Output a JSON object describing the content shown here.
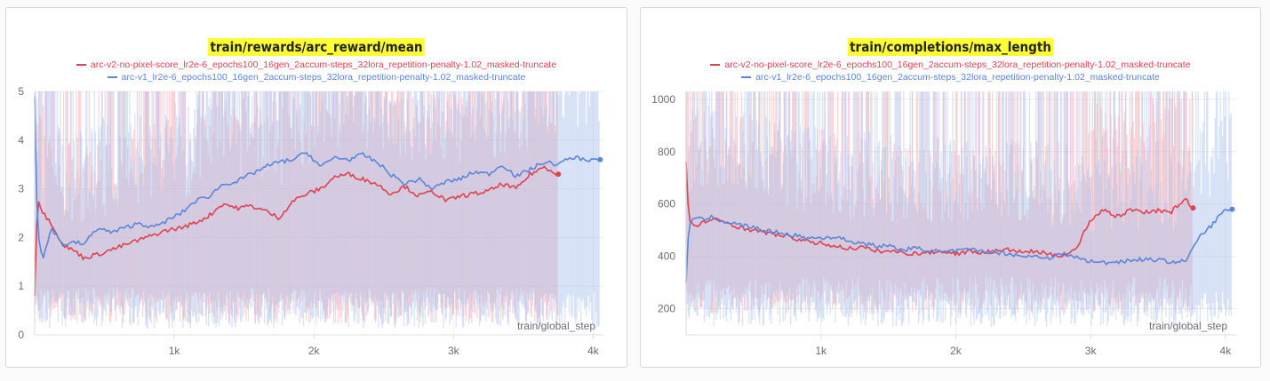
{
  "colors": {
    "series_red": "#e0414f",
    "series_blue": "#5b85d9",
    "band_red": "#f7a1a8",
    "band_blue": "#a9c2ee",
    "title_highlight": "#ffff33"
  },
  "chart_data": [
    {
      "type": "line",
      "title": "train/rewards/arc_reward/mean",
      "xlabel": "train/global_step",
      "ylabel": "",
      "xlim": [
        0,
        4080
      ],
      "ylim": [
        0,
        5
      ],
      "x_ticks": [
        {
          "value": 1000,
          "label": "1k"
        },
        {
          "value": 2000,
          "label": "2k"
        },
        {
          "value": 3000,
          "label": "3k"
        },
        {
          "value": 4000,
          "label": "4k"
        }
      ],
      "y_ticks": [
        {
          "value": 0,
          "label": "0"
        },
        {
          "value": 1,
          "label": "1"
        },
        {
          "value": 2,
          "label": "2"
        },
        {
          "value": 3,
          "label": "3"
        },
        {
          "value": 4,
          "label": "4"
        },
        {
          "value": 5,
          "label": "5"
        }
      ],
      "grid": true,
      "legend_position": "top-center",
      "series": [
        {
          "name": "arc-v2-no-pixel-score_lr2e-6_epochs100_16gen_2accum-steps_32lora_repetition-penalty-1.02_masked-truncate",
          "color": "red",
          "x": [
            0,
            20,
            60,
            120,
            200,
            300,
            350,
            450,
            550,
            650,
            750,
            850,
            950,
            1050,
            1150,
            1250,
            1350,
            1450,
            1550,
            1650,
            1750,
            1850,
            1950,
            2050,
            2150,
            2250,
            2350,
            2450,
            2550,
            2650,
            2750,
            2850,
            2950,
            3050,
            3150,
            3250,
            3350,
            3450,
            3550,
            3650,
            3750
          ],
          "y": [
            0.8,
            2.8,
            2.5,
            2.3,
            1.85,
            1.7,
            1.58,
            1.65,
            1.75,
            1.85,
            1.95,
            2.05,
            2.15,
            2.2,
            2.3,
            2.45,
            2.7,
            2.6,
            2.65,
            2.55,
            2.4,
            2.75,
            2.9,
            3.0,
            3.25,
            3.3,
            3.2,
            3.1,
            2.9,
            3.05,
            2.85,
            2.95,
            2.75,
            2.85,
            2.9,
            2.95,
            3.1,
            3.0,
            3.3,
            3.45,
            3.3
          ],
          "band_low": 0.6,
          "band_high": 5.0
        },
        {
          "name": "arc-v1_lr2e-6_epochs100_16gen_2accum-steps_32lora_repetition-penalty-1.02_masked-truncate",
          "color": "blue",
          "x": [
            0,
            20,
            60,
            120,
            200,
            300,
            350,
            450,
            550,
            650,
            750,
            850,
            950,
            1050,
            1150,
            1250,
            1350,
            1450,
            1550,
            1650,
            1750,
            1850,
            1950,
            2050,
            2150,
            2250,
            2350,
            2450,
            2550,
            2650,
            2750,
            2850,
            2950,
            3050,
            3150,
            3250,
            3350,
            3450,
            3550,
            3650,
            3750,
            3850,
            3950,
            4050
          ],
          "y": [
            4.9,
            2.1,
            1.55,
            2.2,
            1.85,
            1.9,
            1.85,
            2.2,
            2.1,
            2.2,
            2.3,
            2.2,
            2.35,
            2.5,
            2.75,
            2.85,
            3.1,
            3.15,
            3.3,
            3.45,
            3.55,
            3.6,
            3.75,
            3.45,
            3.65,
            3.6,
            3.7,
            3.55,
            3.3,
            3.1,
            3.2,
            3.0,
            3.15,
            3.2,
            3.35,
            3.3,
            3.5,
            3.25,
            3.4,
            3.55,
            3.5,
            3.65,
            3.6,
            3.6
          ],
          "band_low": 0.5,
          "band_high": 5.0
        }
      ]
    },
    {
      "type": "line",
      "title": "train/completions/max_length",
      "xlabel": "train/global_step",
      "ylabel": "",
      "xlim": [
        0,
        4080
      ],
      "ylim": [
        100,
        1030
      ],
      "x_ticks": [
        {
          "value": 1000,
          "label": "1k"
        },
        {
          "value": 2000,
          "label": "2k"
        },
        {
          "value": 3000,
          "label": "3k"
        },
        {
          "value": 4000,
          "label": "4k"
        }
      ],
      "y_ticks": [
        {
          "value": 200,
          "label": "200"
        },
        {
          "value": 400,
          "label": "400"
        },
        {
          "value": 600,
          "label": "600"
        },
        {
          "value": 800,
          "label": "800"
        },
        {
          "value": 1000,
          "label": "1000"
        }
      ],
      "grid": true,
      "legend_position": "top-center",
      "series": [
        {
          "name": "arc-v2-no-pixel-score_lr2e-6_epochs100_16gen_2accum-steps_32lora_repetition-penalty-1.02_masked-truncate",
          "color": "red",
          "x": [
            0,
            20,
            60,
            120,
            200,
            300,
            400,
            500,
            600,
            700,
            800,
            900,
            1000,
            1100,
            1200,
            1300,
            1400,
            1500,
            1600,
            1700,
            1800,
            1900,
            2000,
            2100,
            2200,
            2300,
            2400,
            2500,
            2600,
            2700,
            2800,
            2900,
            2950,
            3000,
            3100,
            3200,
            3300,
            3400,
            3500,
            3600,
            3700,
            3760
          ],
          "y": [
            760,
            540,
            510,
            530,
            540,
            530,
            510,
            500,
            490,
            480,
            470,
            455,
            450,
            440,
            430,
            435,
            420,
            420,
            415,
            410,
            415,
            420,
            410,
            420,
            415,
            420,
            425,
            415,
            420,
            405,
            405,
            430,
            490,
            540,
            580,
            550,
            580,
            570,
            575,
            570,
            620,
            585
          ],
          "band_low": 250,
          "band_high": 1030
        },
        {
          "name": "arc-v1_lr2e-6_epochs100_16gen_2accum-steps_32lora_repetition-penalty-1.02_masked-truncate",
          "color": "blue",
          "x": [
            0,
            20,
            60,
            120,
            200,
            300,
            400,
            500,
            600,
            700,
            800,
            900,
            1000,
            1100,
            1200,
            1300,
            1400,
            1500,
            1600,
            1700,
            1800,
            1900,
            2000,
            2100,
            2200,
            2300,
            2400,
            2500,
            2600,
            2700,
            2800,
            2900,
            3000,
            3100,
            3200,
            3300,
            3400,
            3500,
            3600,
            3700,
            3750,
            3800,
            3900,
            4000,
            4050
          ],
          "y": [
            300,
            520,
            545,
            540,
            550,
            530,
            520,
            510,
            495,
            490,
            480,
            470,
            470,
            475,
            460,
            450,
            440,
            440,
            425,
            430,
            425,
            415,
            420,
            425,
            420,
            415,
            410,
            400,
            400,
            395,
            410,
            395,
            380,
            375,
            380,
            385,
            390,
            385,
            380,
            380,
            420,
            470,
            520,
            580,
            580
          ],
          "band_low": 200,
          "band_high": 1030
        }
      ]
    }
  ]
}
